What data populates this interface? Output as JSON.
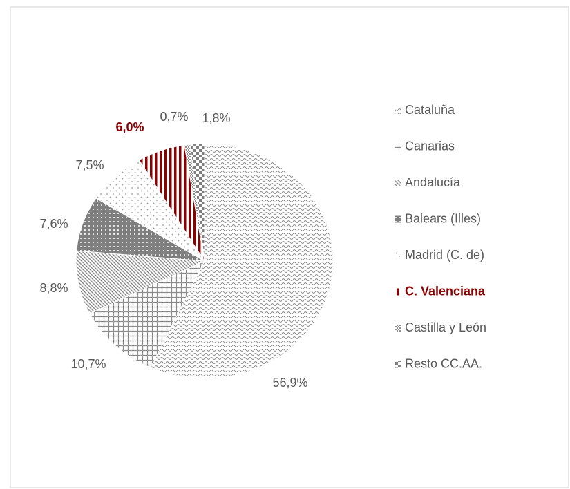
{
  "chart_data": {
    "type": "pie",
    "categories": [
      "Cataluña",
      "Canarias",
      "Andalucía",
      "Balears (Illes)",
      "Madrid (C. de)",
      "C. Valenciana",
      "Castilla y León",
      "Resto CC.AA."
    ],
    "values": [
      56.9,
      10.7,
      8.8,
      7.6,
      7.5,
      6.0,
      0.7,
      1.8
    ],
    "value_labels": [
      "56,9%",
      "10,7%",
      "8,8%",
      "7,6%",
      "7,5%",
      "6,0%",
      "0,7%",
      "1,8%"
    ],
    "colors": [
      "#8c8c8c",
      "#8c8c8c",
      "#8c8c8c",
      "#7f7f7f",
      "#9a9a9a",
      "#8b0000",
      "#8c8c8c",
      "#7f7f7f"
    ],
    "highlight": 5,
    "legend": "right"
  }
}
